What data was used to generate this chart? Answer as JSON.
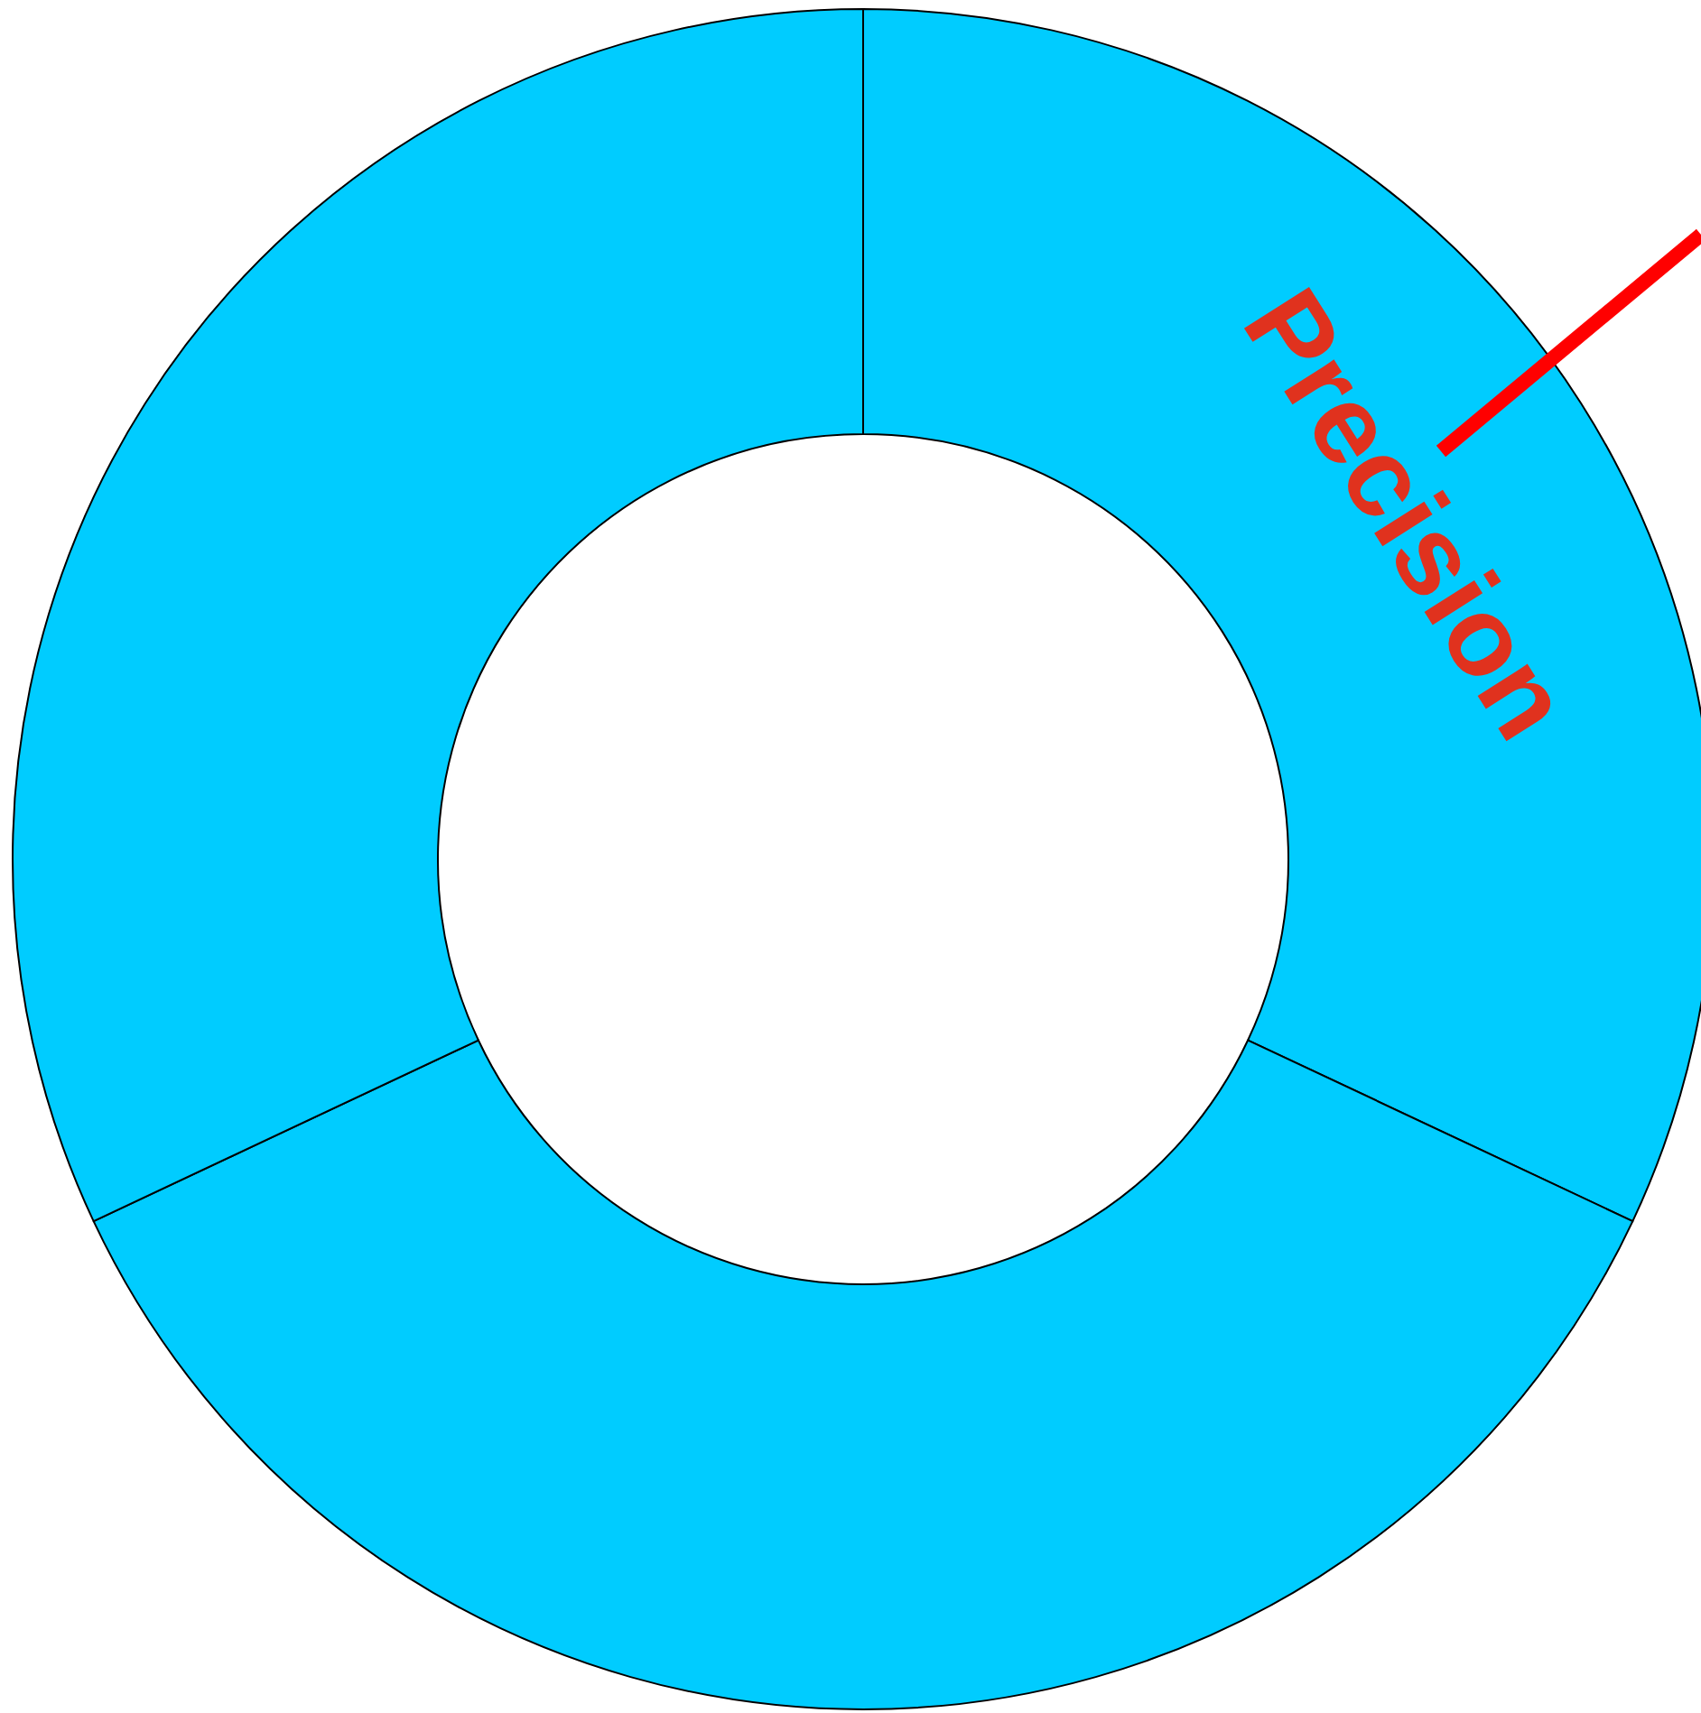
{
  "chart_data": {
    "type": "donut",
    "categories": [
      "Precision",
      null,
      null
    ],
    "values": [
      32,
      36,
      32
    ],
    "colors": [
      "#00ccff",
      "#00ccff",
      "#00ccff"
    ],
    "legend": false
  }
}
